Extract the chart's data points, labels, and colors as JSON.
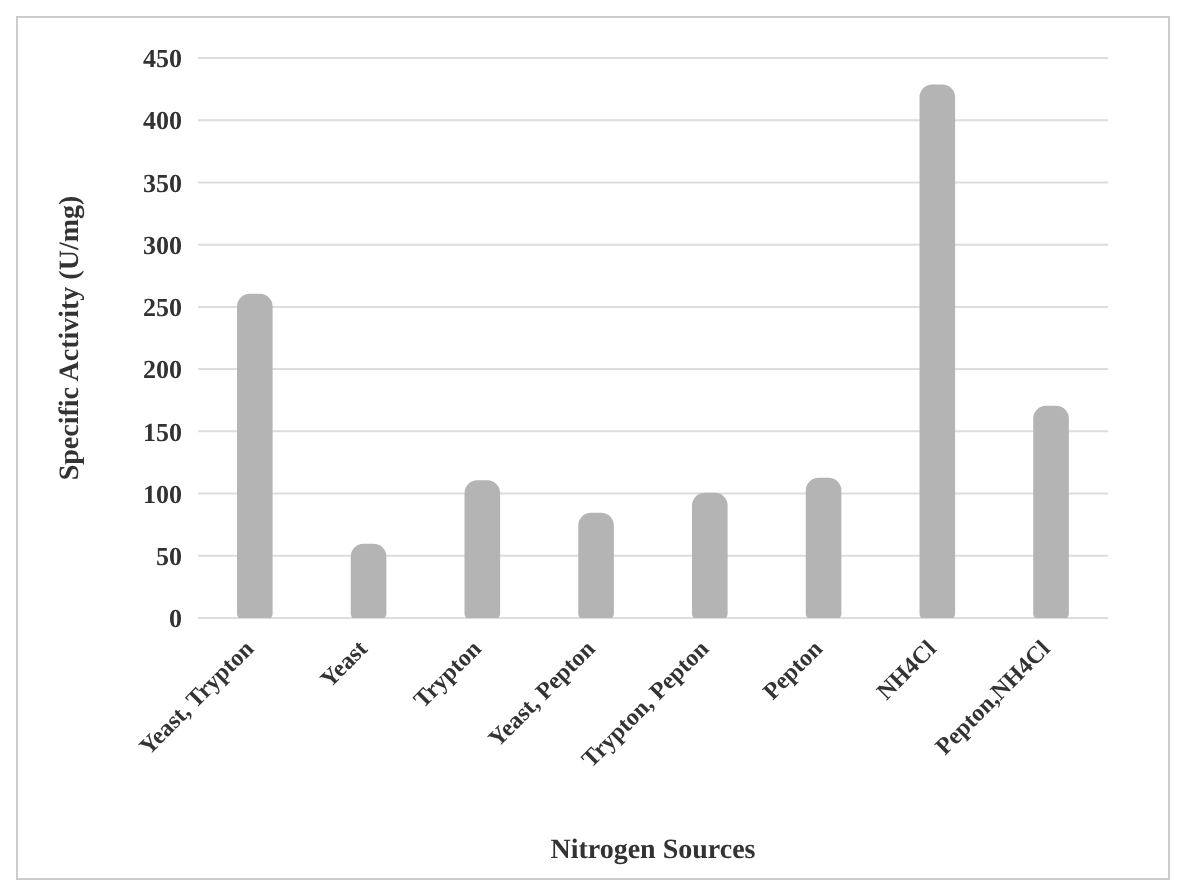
{
  "chart_data": {
    "type": "bar",
    "xlabel": "Nitrogen Sources",
    "ylabel": "Specific Activity (U/mg)",
    "categories": [
      "Yeast, Trypton",
      "Yeast",
      "Trypton",
      "Yeast, Pepton",
      "Trypton, Pepton",
      "Pepton",
      "NH4Cl",
      "Pepton,NH4Cl"
    ],
    "values": [
      260,
      59,
      110,
      84,
      100,
      112,
      428,
      170
    ],
    "color": "#b4b4b4",
    "ylim": [
      0,
      450
    ],
    "yticks": [
      0,
      50,
      100,
      150,
      200,
      250,
      300,
      350,
      400,
      450
    ],
    "grid": "y"
  }
}
